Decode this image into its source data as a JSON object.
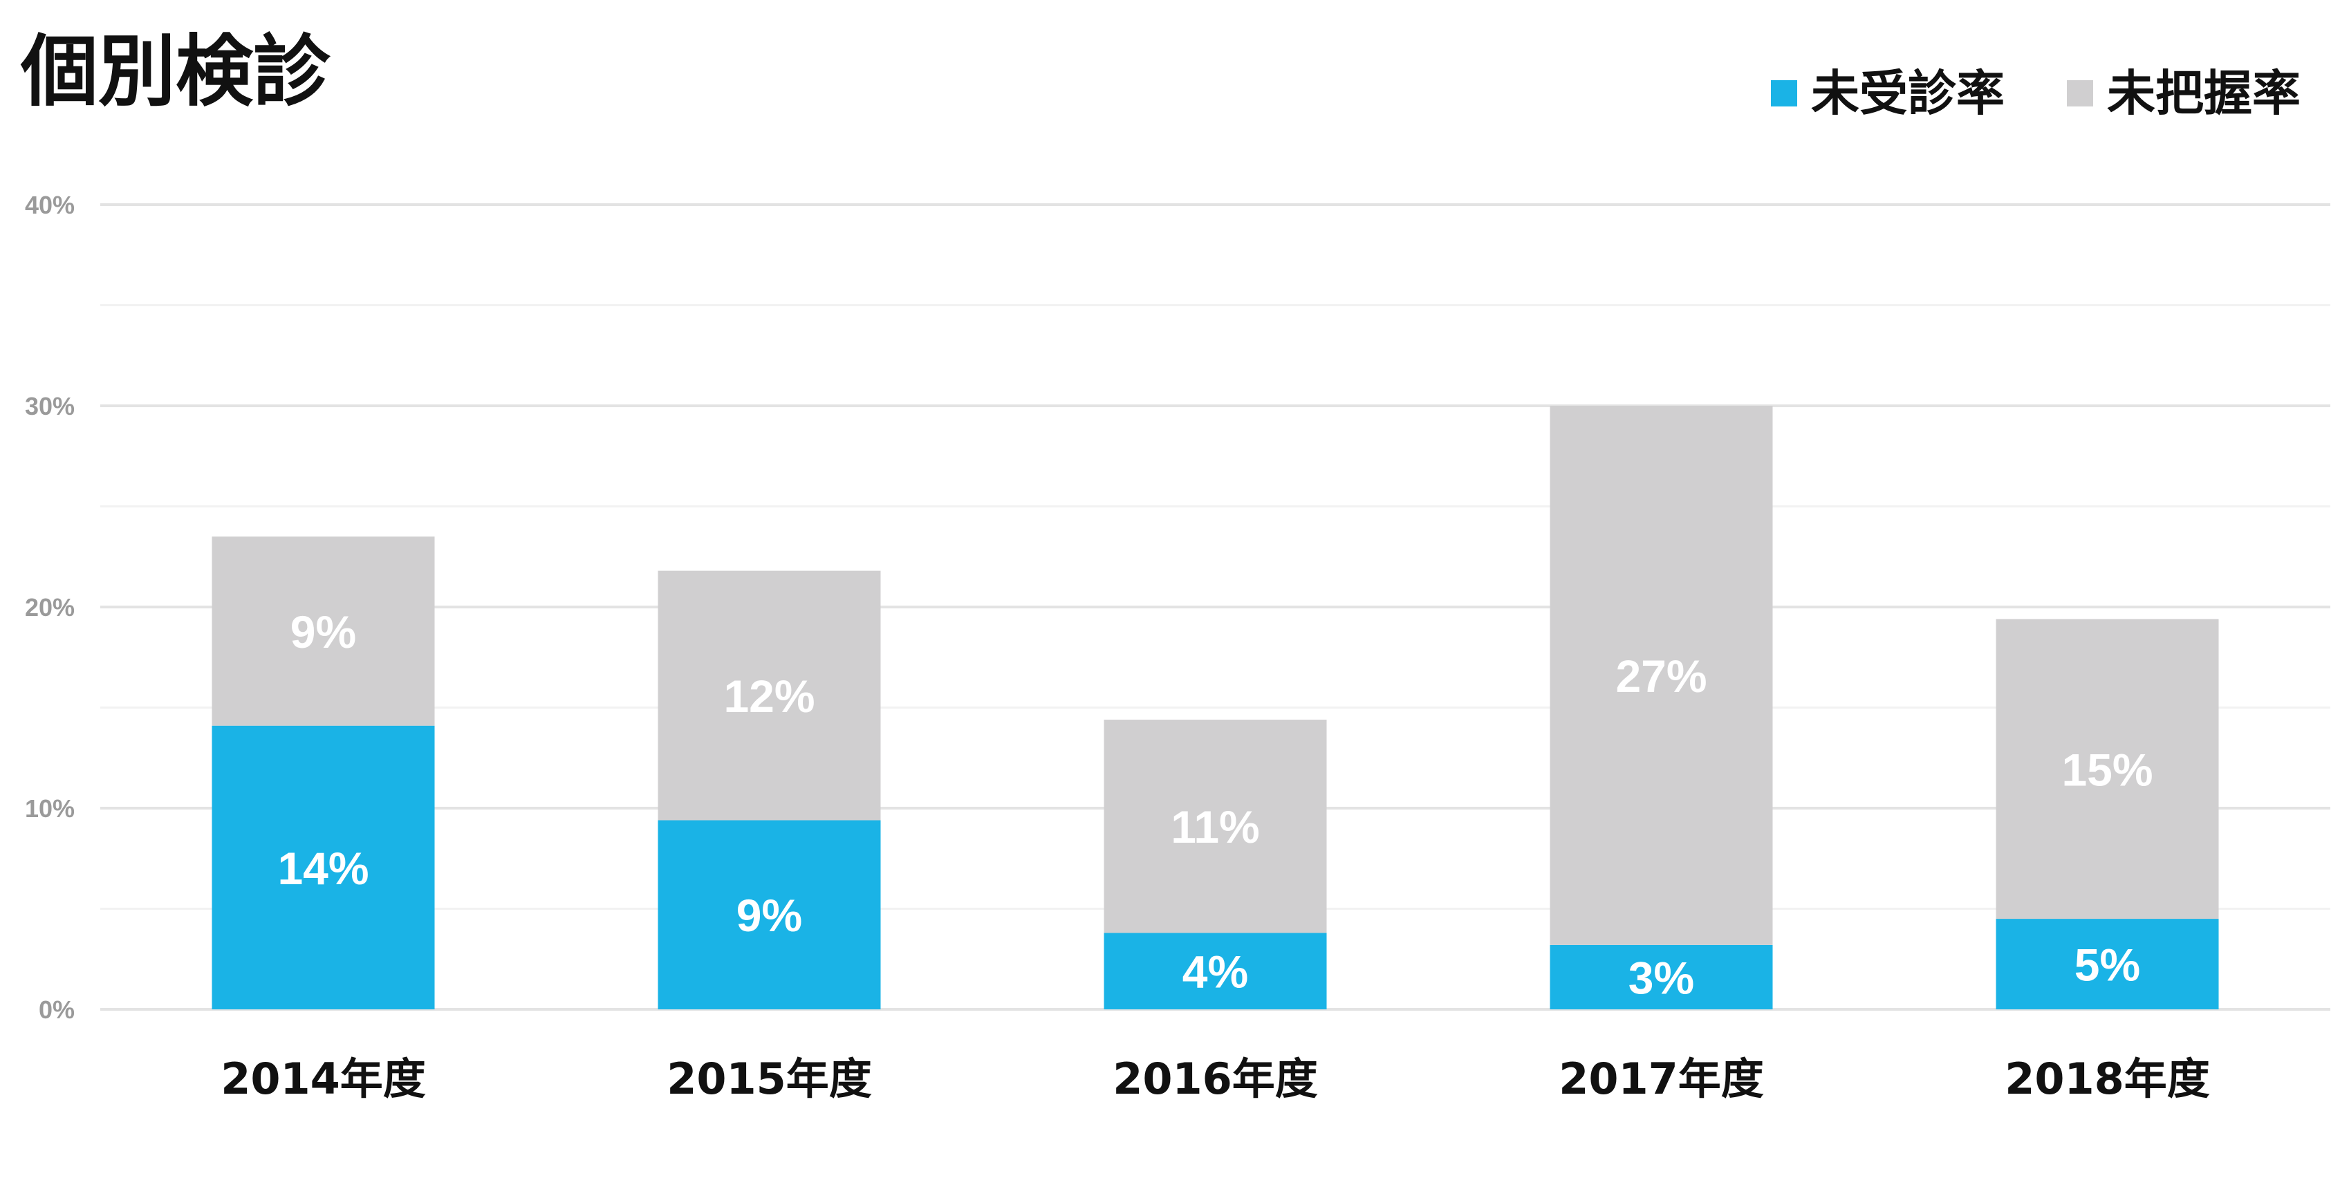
{
  "chart_data": {
    "type": "bar",
    "stacked": true,
    "title": "個別検診",
    "xlabel": "",
    "ylabel": "",
    "categories": [
      "2014年度",
      "2015年度",
      "2016年度",
      "2017年度",
      "2018年度"
    ],
    "series": [
      {
        "name": "未受診率",
        "color": "#1ab3e6",
        "values": [
          14.1,
          9.4,
          3.8,
          3.2,
          4.5
        ],
        "labels": [
          "14%",
          "9%",
          "4%",
          "3%",
          "5%"
        ]
      },
      {
        "name": "未把握率",
        "color": "#d0cfd0",
        "values": [
          9.4,
          12.4,
          10.6,
          26.8,
          14.9
        ],
        "labels": [
          "9%",
          "12%",
          "11%",
          "27%",
          "15%"
        ]
      }
    ],
    "ylim": [
      0,
      40
    ],
    "yticks": [
      0,
      10,
      20,
      30,
      40
    ],
    "ytick_labels": [
      "0%",
      "10%",
      "20%",
      "30%",
      "40%"
    ],
    "grid": true,
    "legend_position": "top-right"
  }
}
